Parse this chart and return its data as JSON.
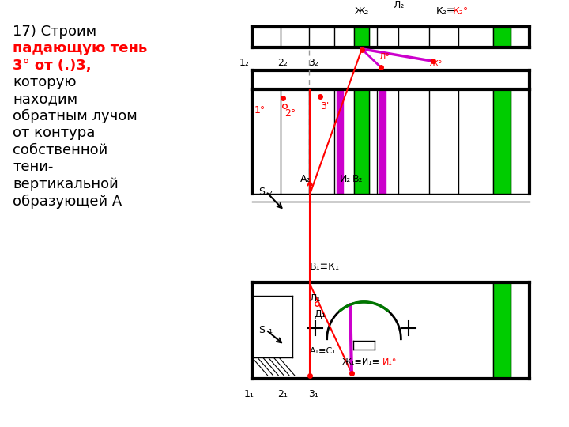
{
  "bg_color": "#ffffff",
  "black": "#000000",
  "green": "#00cc00",
  "magenta": "#cc00cc",
  "red": "#ff0000",
  "gray": "#999999",
  "dark_green": "#007700",
  "text_lines": [
    [
      "17) Строим",
      "black"
    ],
    [
      "падающую тень",
      "red"
    ],
    [
      "3° от (.)3,",
      "red"
    ],
    [
      "которую",
      "black"
    ],
    [
      "находим",
      "black"
    ],
    [
      "обратным лучом",
      "black"
    ],
    [
      "от контура",
      "black"
    ],
    [
      "собственной",
      "black"
    ],
    [
      "тени-",
      "black"
    ],
    [
      "вертикальной",
      "black"
    ],
    [
      "образующей А",
      "black"
    ]
  ]
}
